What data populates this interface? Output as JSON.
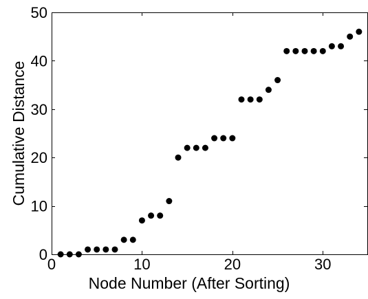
{
  "chart_data": {
    "type": "scatter",
    "title": "",
    "xlabel": "Node Number (After Sorting)",
    "ylabel": "Cumulative Distance",
    "xlim": [
      0,
      35
    ],
    "ylim": [
      0,
      50
    ],
    "xticks": [
      0,
      10,
      20,
      30
    ],
    "yticks": [
      0,
      10,
      20,
      30,
      40,
      50
    ],
    "x_tick_labels": [
      "0",
      "10",
      "20",
      "30"
    ],
    "y_tick_labels": [
      "0",
      "10",
      "20",
      "30",
      "40",
      "50"
    ],
    "grid": false,
    "legend": "none",
    "marker_color": "#000000",
    "x": [
      1,
      2,
      3,
      4,
      5,
      6,
      7,
      8,
      9,
      10,
      11,
      12,
      13,
      14,
      15,
      16,
      17,
      18,
      19,
      20,
      21,
      22,
      23,
      24,
      25,
      26,
      27,
      28,
      29,
      30,
      31,
      32,
      33,
      34
    ],
    "y": [
      0,
      0,
      0,
      1,
      1,
      1,
      1,
      3,
      3,
      7,
      8,
      8,
      11,
      20,
      22,
      22,
      22,
      24,
      24,
      24,
      32,
      32,
      32,
      34,
      36,
      42,
      42,
      42,
      42,
      42,
      43,
      43,
      45,
      46
    ]
  }
}
